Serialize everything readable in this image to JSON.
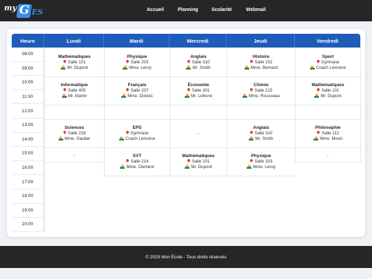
{
  "brand": {
    "my": "my",
    "g": "G",
    "es": "ES"
  },
  "nav": [
    "Accueil",
    "Planning",
    "Scolarité",
    "Webmail"
  ],
  "header": {
    "corner": "Heure",
    "days": [
      "Lundi",
      "Mardi",
      "Mercredi",
      "Jeudi",
      "Vendredi"
    ]
  },
  "times": [
    "08:00",
    "09:00",
    "10:00",
    "11:00",
    "12:00",
    "13:00",
    "14:00",
    "15:00",
    "16:00",
    "17:00",
    "18:00",
    "19:00",
    "20:00"
  ],
  "courses": {
    "lundi_1": {
      "subject": "Mathématiques",
      "room": "Salle 101",
      "teacher": "Mr. Dupont"
    },
    "lundi_2": {
      "subject": "Informatique",
      "room": "Salle 405",
      "teacher": "Mr. Martin"
    },
    "lundi_3": {
      "subject": "Sciences",
      "room": "Salle 218",
      "teacher": "Mme. Gautier"
    },
    "lundi_4": {
      "empty": "-"
    },
    "mardi_1": {
      "subject": "Physique",
      "room": "Salle 203",
      "teacher": "Mme. Leroy"
    },
    "mardi_2": {
      "subject": "Français",
      "room": "Salle 207",
      "teacher": "Mme. Dubois"
    },
    "mardi_3": {
      "subject": "EPS",
      "room": "Gymnase",
      "teacher": "Coach Lemoine"
    },
    "mardi_4": {
      "subject": "SVT",
      "room": "Salle 214",
      "teacher": "Mme. Clement"
    },
    "mercredi_1": {
      "subject": "Anglais",
      "room": "Salle 310",
      "teacher": "Mr. Smith"
    },
    "mercredi_2": {
      "subject": "Économie",
      "room": "Salle 301",
      "teacher": "Mr. Lefevre"
    },
    "mercredi_3": {
      "empty": "-"
    },
    "mercredi_4": {
      "subject": "Mathématiques",
      "room": "Salle 101",
      "teacher": "Mr. Dupont"
    },
    "jeudi_1": {
      "subject": "Histoire",
      "room": "Salle 102",
      "teacher": "Mme. Bernard"
    },
    "jeudi_2": {
      "subject": "Chimie",
      "room": "Salle 215",
      "teacher": "Mme. Rousseau"
    },
    "jeudi_3": {
      "subject": "Anglais",
      "room": "Salle 310",
      "teacher": "Mr. Smith"
    },
    "jeudi_4": {
      "subject": "Physique",
      "room": "Salle 203",
      "teacher": "Mme. Leroy"
    },
    "vendredi_1": {
      "subject": "Sport",
      "room": "Gymnase",
      "teacher": "Coach Lemoine"
    },
    "vendredi_2": {
      "subject": "Mathématiques",
      "room": "Salle 101",
      "teacher": "Mr. Dupont"
    },
    "vendredi_3": {
      "subject": "Philosophie",
      "room": "Salle 112",
      "teacher": "Mme. Morel"
    },
    "vendredi_4": {
      "empty": "-"
    }
  },
  "footer": {
    "text": "© 2025 Mon École - Tous droits réservés"
  },
  "colors": {
    "header_bg": "#1f5bb8",
    "topbar_bg": "#262626",
    "pin": "#e0413c",
    "teacher_icon": "#3c8b3a"
  }
}
